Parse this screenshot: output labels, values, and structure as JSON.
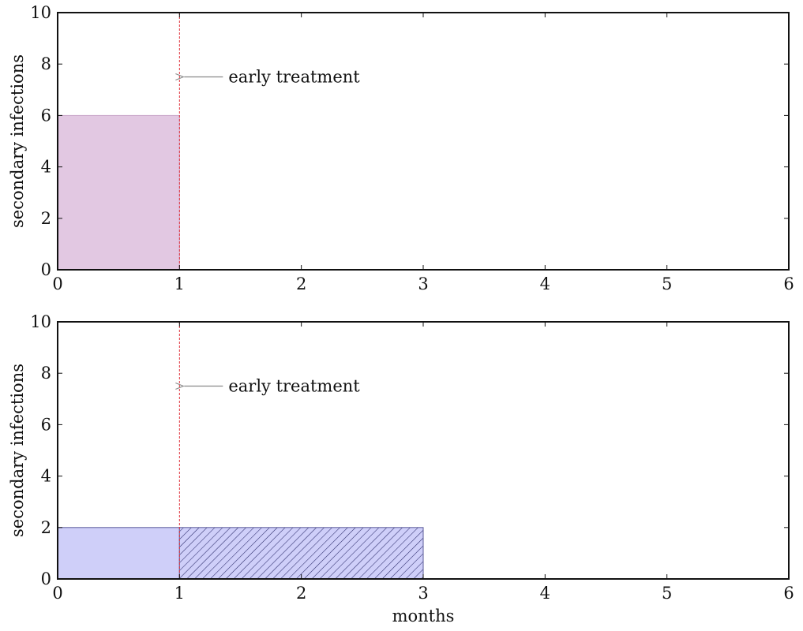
{
  "chart_data": [
    {
      "type": "bar",
      "xlabel": "",
      "ylabel": "secondary infections",
      "xlim": [
        0,
        6
      ],
      "ylim": [
        0,
        10
      ],
      "xticks": [
        0,
        1,
        2,
        3,
        4,
        5,
        6
      ],
      "yticks": [
        0,
        2,
        4,
        6,
        8,
        10
      ],
      "grid": false,
      "bars": [
        {
          "x_start": 0,
          "x_end": 1,
          "value": 6,
          "fill": "#e2c8e2",
          "hatched": false
        }
      ],
      "marker_line": {
        "x": 1,
        "color": "#e0303a",
        "style": "dashed"
      },
      "annotation": {
        "text": "early treatment",
        "points_to": [
          1,
          7.5
        ]
      }
    },
    {
      "type": "bar",
      "xlabel": "months",
      "ylabel": "secondary infections",
      "xlim": [
        0,
        6
      ],
      "ylim": [
        0,
        10
      ],
      "xticks": [
        0,
        1,
        2,
        3,
        4,
        5,
        6
      ],
      "yticks": [
        0,
        2,
        4,
        6,
        8,
        10
      ],
      "grid": false,
      "bars": [
        {
          "x_start": 0,
          "x_end": 1,
          "value": 2,
          "fill": "#cfcff9",
          "hatched": false
        },
        {
          "x_start": 1,
          "x_end": 3,
          "value": 2,
          "fill": "#cfcff9",
          "hatched": true
        }
      ],
      "marker_line": {
        "x": 1,
        "color": "#e0303a",
        "style": "dashed"
      },
      "annotation": {
        "text": "early treatment",
        "points_to": [
          1,
          7.5
        ]
      }
    }
  ],
  "colors": {
    "axis": "#111111",
    "hatch": "#2a2a6a",
    "bar_edge_pink": "#c9a6c9",
    "bar_edge_blue": "#5a5a99",
    "arrow": "#888888"
  }
}
